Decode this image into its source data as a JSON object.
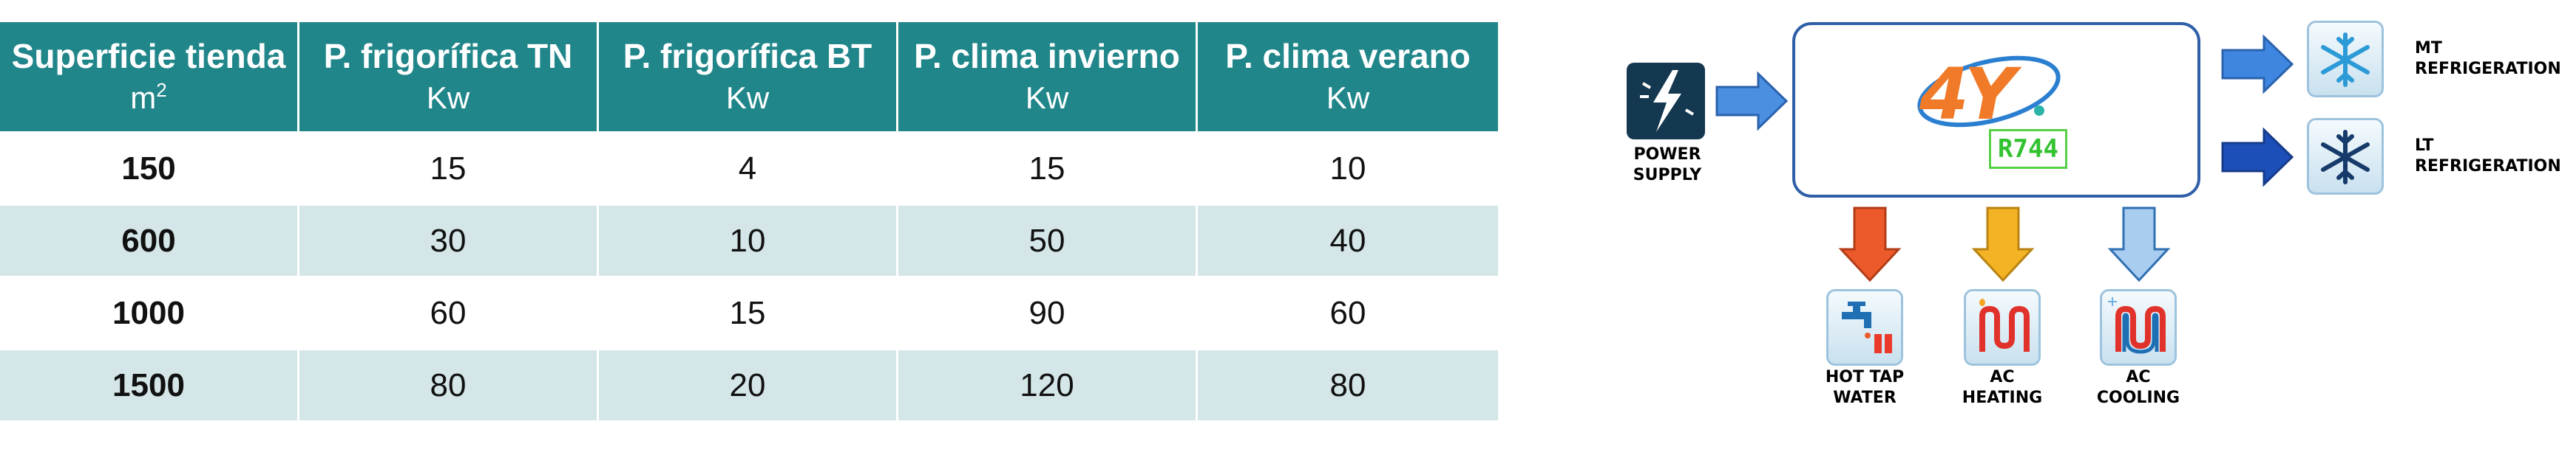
{
  "table": {
    "headers": [
      {
        "title": "Superficie tienda",
        "unit": "m",
        "unit_sup": "2"
      },
      {
        "title": "P. frigorífica TN",
        "unit": "Kw",
        "unit_sup": ""
      },
      {
        "title": "P. frigorífica BT",
        "unit": "Kw",
        "unit_sup": ""
      },
      {
        "title": "P. clima invierno",
        "unit": "Kw",
        "unit_sup": ""
      },
      {
        "title": "P. clima verano",
        "unit": "Kw",
        "unit_sup": ""
      }
    ],
    "rows": [
      [
        "150",
        "15",
        "4",
        "15",
        "10"
      ],
      [
        "600",
        "30",
        "10",
        "50",
        "40"
      ],
      [
        "1000",
        "60",
        "15",
        "90",
        "60"
      ],
      [
        "1500",
        "80",
        "20",
        "120",
        "80"
      ]
    ],
    "colors": {
      "header_bg": "#21868a",
      "stripe_bg": "#d4e6e8"
    }
  },
  "diagram": {
    "power_supply": {
      "line1": "POWER",
      "line2": "SUPPLY",
      "icon": "lightning-bolt-icon"
    },
    "hub": {
      "logo_text": "4Y",
      "refrigerant_label": "R744"
    },
    "outputs_right": [
      {
        "line1": "MT",
        "line2": "REFRIGERATION",
        "icon": "snowflake-icon"
      },
      {
        "line1": "LT",
        "line2": "REFRIGERATION",
        "icon": "snowflake-icon"
      }
    ],
    "outputs_bottom": [
      {
        "line1": "HOT TAP",
        "line2": "WATER",
        "icon": "tap-water-icon"
      },
      {
        "line1": "AC",
        "line2": "HEATING",
        "icon": "heating-coil-icon"
      },
      {
        "line1": "AC",
        "line2": "COOLING",
        "icon": "cooling-coil-icon"
      }
    ],
    "arrow_colors": {
      "power": "#4a8fe0",
      "mt": "#3f86e0",
      "lt": "#1d4fb8",
      "hot_water": "#ec5a2c",
      "heating": "#f4b324",
      "cooling": "#a8cdf0"
    }
  }
}
